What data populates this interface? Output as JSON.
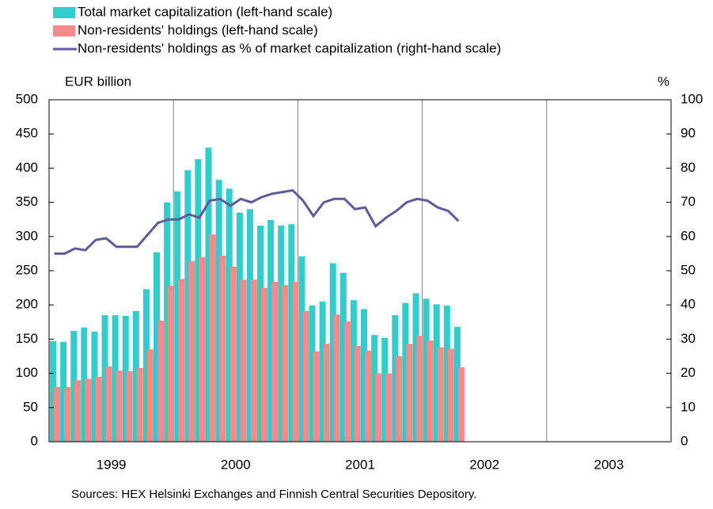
{
  "chart_data": {
    "type": "bar-line",
    "legend": "top-left",
    "y_label": "EUR billion",
    "y2_label": "%",
    "source": "Sources: HEX Helsinki Exchanges and Finnish Central Securities Depository.",
    "categories": [
      "1999",
      null,
      null,
      null,
      null,
      null,
      null,
      null,
      null,
      null,
      null,
      null,
      "2000",
      null,
      null,
      null,
      null,
      null,
      null,
      null,
      null,
      null,
      null,
      null,
      "2001",
      null,
      null,
      null,
      null,
      null,
      null,
      null,
      null,
      null,
      null,
      null,
      "2002",
      null,
      null,
      null,
      null,
      null,
      null,
      null,
      null,
      null,
      null,
      null,
      "2003",
      null,
      null,
      null,
      null,
      null,
      null,
      null,
      null,
      null,
      null,
      null
    ],
    "ylim": [
      0,
      500
    ],
    "yticks": [
      0,
      50,
      100,
      150,
      200,
      250,
      300,
      350,
      400,
      450,
      500
    ],
    "y2lim": [
      0,
      100
    ],
    "y2ticks": [
      0,
      10,
      20,
      30,
      40,
      50,
      60,
      70,
      80,
      90,
      100
    ],
    "series": [
      {
        "name": "Total market capitalization (left-hand scale)",
        "type": "bar",
        "color": "#33cccc",
        "values": [
          147,
          146,
          162,
          167,
          161,
          185,
          185,
          184,
          191,
          223,
          277,
          350,
          366,
          397,
          413,
          430,
          383,
          370,
          335,
          340,
          316,
          324,
          316,
          318,
          271,
          199,
          205,
          261,
          247,
          207,
          194,
          156,
          152,
          185,
          203,
          217,
          209,
          201,
          199,
          168,
          null,
          null,
          null,
          null,
          null,
          null,
          null,
          null,
          null,
          null,
          null,
          null,
          null,
          null,
          null,
          null,
          null,
          null,
          null,
          null
        ]
      },
      {
        "name": "Non-residents' holdings (left-hand scale)",
        "type": "bar",
        "color": "#f58a8a",
        "values": [
          80,
          80,
          90,
          92,
          95,
          110,
          104,
          103,
          108,
          135,
          177,
          228,
          238,
          264,
          270,
          303,
          272,
          256,
          237,
          237,
          225,
          234,
          229,
          234,
          191,
          132,
          143,
          186,
          176,
          140,
          133,
          100,
          100,
          125,
          143,
          155,
          148,
          138,
          136,
          109,
          null,
          null,
          null,
          null,
          null,
          null,
          null,
          null,
          null,
          null,
          null,
          null,
          null,
          null,
          null,
          null,
          null,
          null,
          null,
          null
        ]
      },
      {
        "name": "Non-residents' holdings as % of market capitalization (right-hand scale)",
        "type": "line",
        "axis": "y2",
        "color": "#5c5c9c",
        "values": [
          55,
          55,
          56.5,
          56,
          59,
          59.5,
          57,
          57,
          57,
          60.5,
          64,
          65,
          65,
          66.5,
          65.5,
          70.5,
          71,
          69,
          71,
          70,
          71.5,
          72.5,
          73,
          73.5,
          70.5,
          66,
          70,
          71,
          71,
          68,
          68.5,
          63,
          65.5,
          67.5,
          70,
          71,
          70.5,
          68.5,
          67.5,
          64.5,
          null,
          null,
          null,
          null,
          null,
          null,
          null,
          null,
          null,
          null,
          null,
          null,
          null,
          null,
          null,
          null,
          null,
          null,
          null,
          null
        ]
      }
    ]
  }
}
